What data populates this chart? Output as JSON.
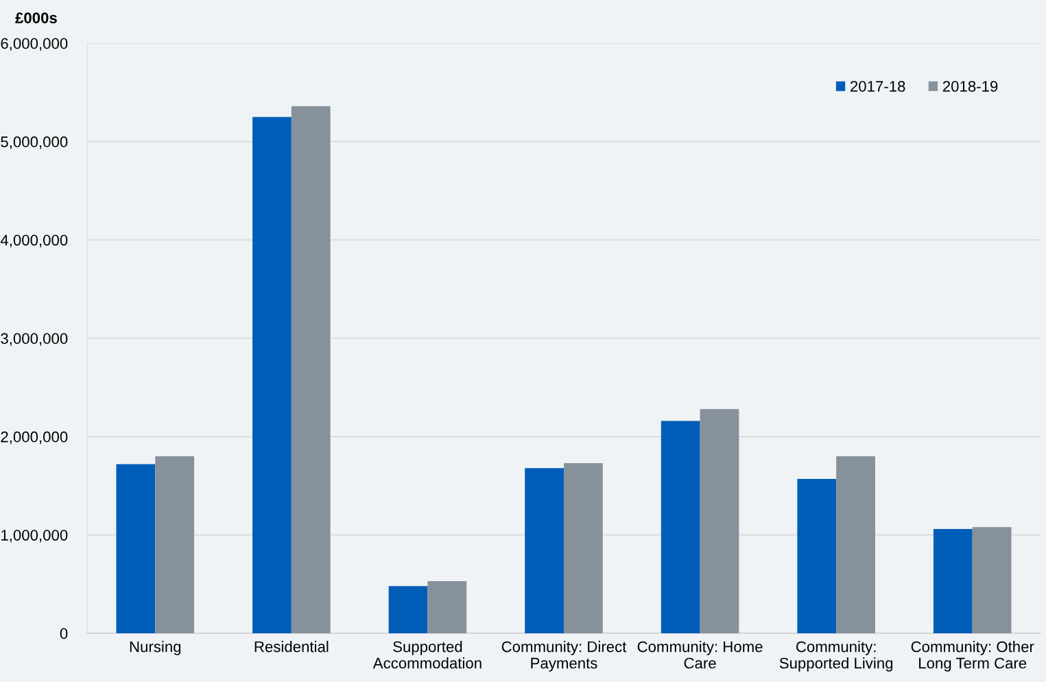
{
  "chart_data": {
    "type": "bar",
    "ylabel": "£000s",
    "categories": [
      "Nursing",
      "Residential",
      "Supported\nAccommodation",
      "Community: Direct\nPayments",
      "Community: Home\nCare",
      "Community:\nSupported Living",
      "Community: Other\nLong Term Care"
    ],
    "series": [
      {
        "name": "2017-18",
        "color": "#005eb8",
        "values": [
          1720000,
          5250000,
          480000,
          1680000,
          2160000,
          1570000,
          1060000
        ]
      },
      {
        "name": "2018-19",
        "color": "#86919b",
        "values": [
          1800000,
          5360000,
          530000,
          1730000,
          2280000,
          1800000,
          1080000
        ]
      }
    ],
    "ylim": [
      0,
      6000000
    ],
    "yticks": [
      {
        "value": 0,
        "label": "0"
      },
      {
        "value": 1000000,
        "label": "1,000,000"
      },
      {
        "value": 2000000,
        "label": "2,000,000"
      },
      {
        "value": 3000000,
        "label": "3,000,000"
      },
      {
        "value": 4000000,
        "label": "4,000,000"
      },
      {
        "value": 5000000,
        "label": "5,000,000"
      },
      {
        "value": 6000000,
        "label": "6,000,000"
      }
    ],
    "grid": "y",
    "legend": "top right"
  }
}
